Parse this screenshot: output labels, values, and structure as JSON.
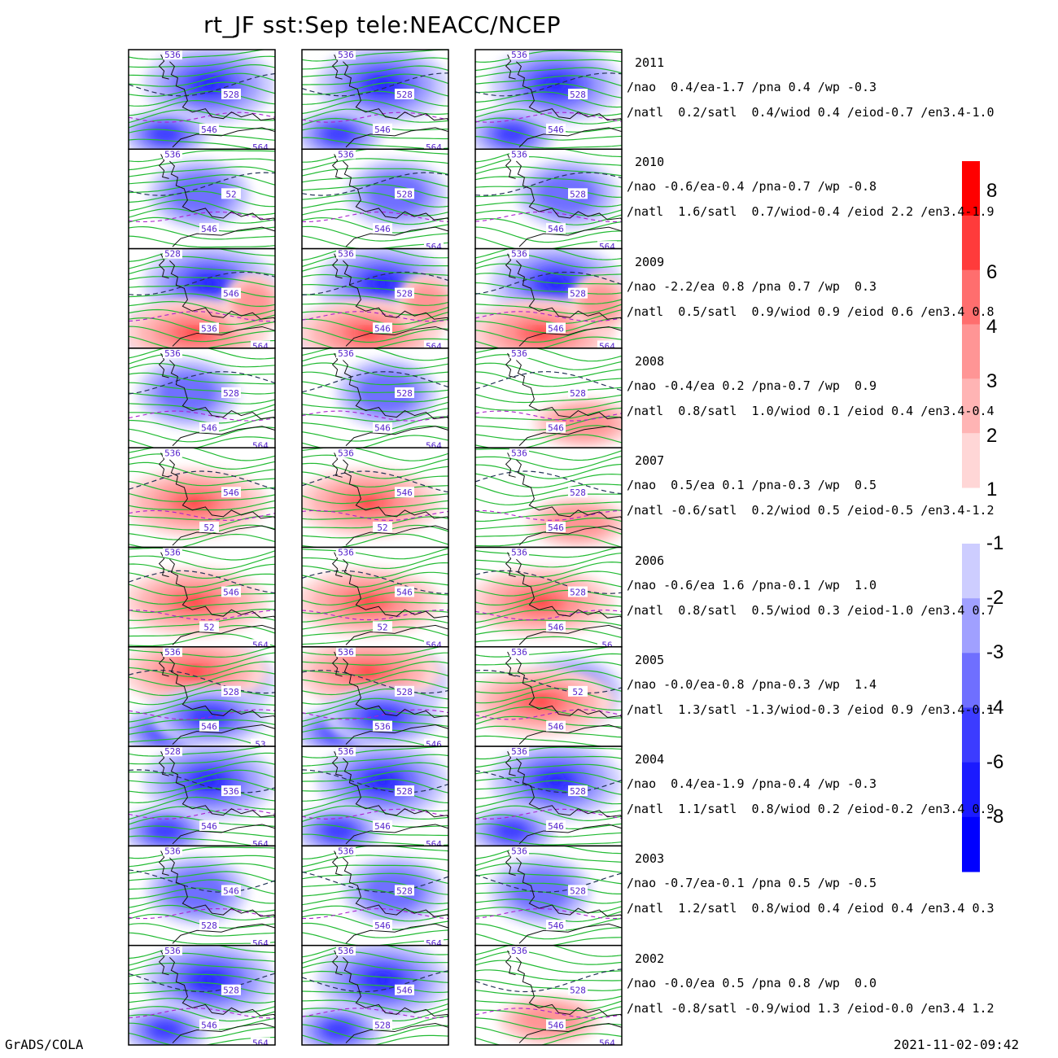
{
  "title": "rt_JF  sst:Sep  tele:NEACC/NCEP",
  "footer": {
    "left": "GrADS/COLA",
    "right": "2021-11-02-09:42"
  },
  "colors": {
    "pos": [
      "#ffd6d6",
      "#ffb4b4",
      "#ff9595",
      "#ff6e6e",
      "#ff3b3b",
      "#ff0000"
    ],
    "neg": [
      "#cdcdff",
      "#a0a0ff",
      "#6f6fff",
      "#3c3cff",
      "#1b1bff",
      "#0000ff"
    ],
    "green_contour": "#22bb33",
    "dashed_contour": "#223355",
    "purple_contour": "#aa22cc",
    "label_text": "#5522cc"
  },
  "chart_data": {
    "type": "heatmap",
    "colorbar": {
      "positive_ticks": [
        "8",
        "6",
        "4",
        "3",
        "2",
        "1"
      ],
      "negative_ticks": [
        "-1",
        "-2",
        "-3",
        "-4",
        "-6",
        "-8"
      ]
    },
    "columns": 3,
    "rows": [
      {
        "year": "2011",
        "tele1": "/nao  0.4/ea-1.7 /pna 0.4 /wp -0.3",
        "tele2": "/natl  0.2/satl  0.4/wiod 0.4 /eiod-0.7 /en3.4-1.0",
        "labels": [
          [
            "536",
            "528",
            "546",
            "564"
          ],
          [
            "536",
            "528",
            "546",
            "564"
          ],
          [
            "536",
            "528",
            "546"
          ]
        ],
        "pattern": [
          "N",
          "N",
          "N"
        ]
      },
      {
        "year": "2010",
        "tele1": "/nao -0.6/ea-0.4 /pna-0.7 /wp -0.8",
        "tele2": "/natl  1.6/satl  0.7/wiod-0.4 /eiod 2.2 /en3.4-1.9",
        "labels": [
          [
            "536",
            "52",
            "546"
          ],
          [
            "536",
            "528",
            "546",
            "564"
          ],
          [
            "536",
            "528",
            "546",
            "564"
          ]
        ],
        "pattern": [
          "n",
          "n",
          "n"
        ]
      },
      {
        "year": "2009",
        "tele1": "/nao -2.2/ea 0.8 /pna 0.7 /wp  0.3",
        "tele2": "/natl  0.5/satl  0.9/wiod 0.9 /eiod 0.6 /en3.4 0.8",
        "labels": [
          [
            "528",
            "546",
            "536",
            "564"
          ],
          [
            "536",
            "528",
            "546",
            "564"
          ],
          [
            "536",
            "528",
            "546",
            "564"
          ]
        ],
        "pattern": [
          "NP",
          "NP",
          "NP"
        ]
      },
      {
        "year": "2008",
        "tele1": "/nao -0.4/ea 0.2 /pna-0.7 /wp  0.9",
        "tele2": "/natl  0.8/satl  1.0/wiod 0.1 /eiod 0.4 /en3.4-0.4",
        "labels": [
          [
            "536",
            "528",
            "546",
            "564"
          ],
          [
            "536",
            "528",
            "546",
            "564"
          ],
          [
            "536",
            "528",
            "546"
          ]
        ],
        "pattern": [
          "n",
          "n",
          "p"
        ]
      },
      {
        "year": "2007",
        "tele1": "/nao  0.5/ea 0.1 /pna-0.3 /wp  0.5",
        "tele2": "/natl -0.6/satl  0.2/wiod 0.5 /eiod-0.5 /en3.4-1.2",
        "labels": [
          [
            "536",
            "546",
            "52"
          ],
          [
            "536",
            "546",
            "52"
          ],
          [
            "536",
            "528",
            "546"
          ]
        ],
        "pattern": [
          "P",
          "P",
          "p"
        ]
      },
      {
        "year": "2006",
        "tele1": "/nao -0.6/ea 1.6 /pna-0.1 /wp  1.0",
        "tele2": "/natl  0.8/satl  0.5/wiod 0.3 /eiod-1.0 /en3.4 0.7",
        "labels": [
          [
            "536",
            "546",
            "52",
            "564"
          ],
          [
            "536",
            "546",
            "52",
            "564"
          ],
          [
            "536",
            "528",
            "546",
            "56"
          ]
        ],
        "pattern": [
          "P",
          "P",
          "P"
        ]
      },
      {
        "year": "2005",
        "tele1": "/nao -0.0/ea-0.8 /pna-0.3 /wp  1.4",
        "tele2": "/natl  1.3/satl -1.3/wiod-0.3 /eiod 0.9 /en3.4-0.1",
        "labels": [
          [
            "536",
            "528",
            "546",
            "53"
          ],
          [
            "536",
            "528",
            "536",
            "546"
          ],
          [
            "536",
            "52",
            "546"
          ]
        ],
        "pattern": [
          "PN",
          "PN",
          "Pn"
        ]
      },
      {
        "year": "2004",
        "tele1": "/nao  0.4/ea-1.9 /pna-0.4 /wp -0.3",
        "tele2": "/natl  1.1/satl  0.8/wiod 0.2 /eiod-0.2 /en3.4 0.9",
        "labels": [
          [
            "528",
            "536",
            "546",
            "564"
          ],
          [
            "536",
            "528",
            "546",
            "564"
          ],
          [
            "536",
            "528",
            "546"
          ]
        ],
        "pattern": [
          "N",
          "N",
          "N"
        ]
      },
      {
        "year": "2003",
        "tele1": "/nao -0.7/ea-0.1 /pna 0.5 /wp -0.5",
        "tele2": "/natl  1.2/satl  0.8/wiod 0.4 /eiod 0.4 /en3.4 0.3",
        "labels": [
          [
            "536",
            "546",
            "528",
            "564"
          ],
          [
            "536",
            "528",
            "546",
            "564"
          ],
          [
            "536",
            "528",
            "546"
          ]
        ],
        "pattern": [
          "n",
          "n",
          "n"
        ]
      },
      {
        "year": "2002",
        "tele1": "/nao -0.0/ea 0.5 /pna 0.8 /wp  0.0",
        "tele2": "/natl -0.8/satl -0.9/wiod 1.3 /eiod-0.0 /en3.4 1.2",
        "labels": [
          [
            "536",
            "528",
            "546",
            "564"
          ],
          [
            "536",
            "546",
            "528"
          ],
          [
            "536",
            "528",
            "546",
            "564"
          ]
        ],
        "pattern": [
          "N",
          "N",
          "p"
        ]
      }
    ]
  }
}
